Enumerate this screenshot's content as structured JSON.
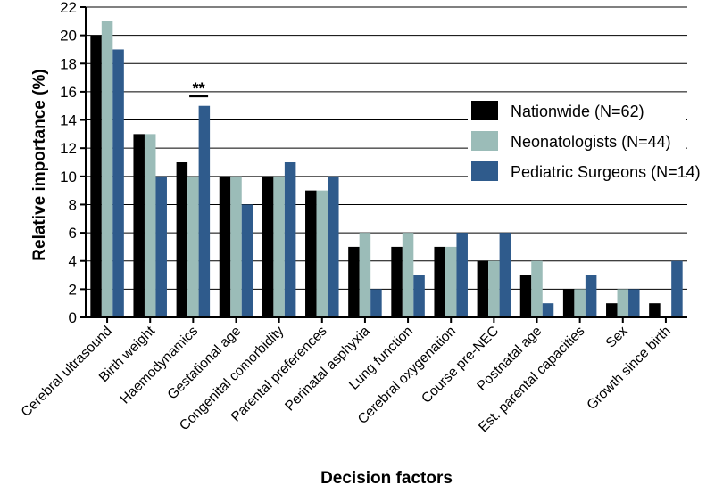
{
  "chart_data": {
    "type": "bar",
    "title": "",
    "xlabel": "Decision factors",
    "ylabel": "Relative importance (%)",
    "ylim": [
      0,
      22
    ],
    "ytick_step": 2,
    "grid": "horizontal",
    "legend_position": "right",
    "categories": [
      "Cerebral ultrasound",
      "Birth weight",
      "Haemodynamics",
      "Gestational age",
      "Congenital comorbidity",
      "Parental preferences",
      "Perinatal asphyxia",
      "Lung function",
      "Cerebral oxygenation",
      "Course pre-NEC",
      "Postnatal age",
      "Est. parental capacities",
      "Sex",
      "Growth since birth"
    ],
    "series": [
      {
        "name": "Nationwide (N=62)",
        "color": "#000000",
        "values": [
          20,
          13,
          11,
          10,
          10,
          9,
          5,
          5,
          5,
          4,
          3,
          2,
          1,
          1
        ]
      },
      {
        "name": "Neonatologists (N=44)",
        "color": "#9bbcb8",
        "values": [
          21,
          13,
          10,
          10,
          10,
          9,
          6,
          6,
          5,
          4,
          4,
          2,
          2,
          0
        ]
      },
      {
        "name": "Pediatric Surgeons (N=14)",
        "color": "#2f5b8c",
        "values": [
          19,
          10,
          15,
          8,
          11,
          10,
          2,
          3,
          6,
          6,
          1,
          3,
          2,
          4
        ]
      }
    ],
    "annotations": [
      {
        "text": "**",
        "category": "Haemodynamics",
        "between_series": [
          1,
          2
        ],
        "y_value": 15.7
      }
    ]
  }
}
